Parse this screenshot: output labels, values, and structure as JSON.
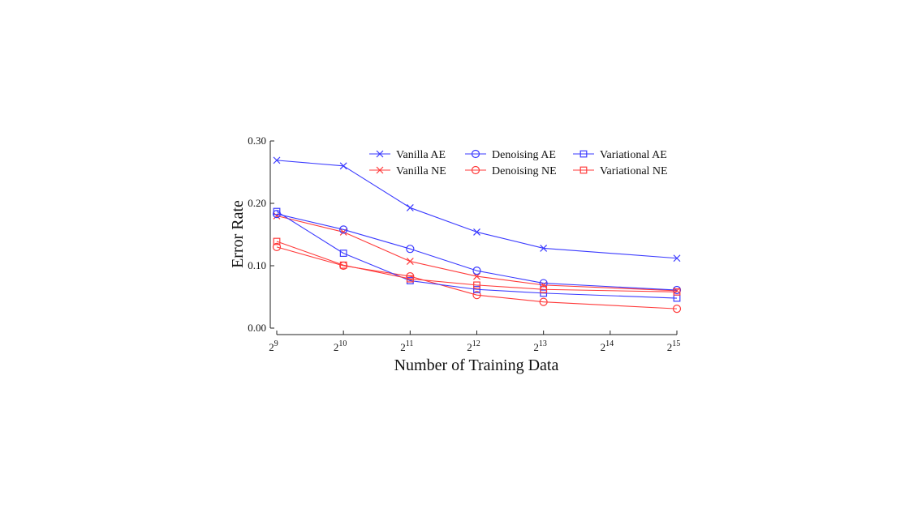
{
  "chart_data": {
    "type": "line",
    "title": "",
    "xlabel": "Number of Training Data",
    "ylabel": "Error Rate",
    "x": [
      9,
      10,
      11,
      12,
      13,
      14,
      15
    ],
    "x_tick_labels": [
      {
        "base": "2",
        "exp": "9"
      },
      {
        "base": "2",
        "exp": "10"
      },
      {
        "base": "2",
        "exp": "11"
      },
      {
        "base": "2",
        "exp": "12"
      },
      {
        "base": "2",
        "exp": "13"
      },
      {
        "base": "2",
        "exp": "14"
      },
      {
        "base": "2",
        "exp": "15"
      }
    ],
    "x_scale": "log2",
    "y_ticks": [
      "0.00",
      "0.10",
      "0.20",
      "0.30"
    ],
    "ylim": [
      0,
      0.3
    ],
    "grid": false,
    "legend_position": "top-right",
    "series": [
      {
        "name": "Vanilla AE",
        "color": "#3a3aff",
        "marker": "x",
        "x": [
          9,
          10,
          11,
          12,
          13,
          15
        ],
        "values": [
          0.269,
          0.26,
          0.193,
          0.154,
          0.128,
          0.112
        ]
      },
      {
        "name": "Vanilla NE",
        "color": "#ff3a3a",
        "marker": "x",
        "x": [
          9,
          10,
          11,
          12,
          13,
          15
        ],
        "values": [
          0.18,
          0.154,
          0.107,
          0.083,
          0.069,
          0.06
        ]
      },
      {
        "name": "Denoising AE",
        "color": "#3a3aff",
        "marker": "circle",
        "x": [
          9,
          10,
          11,
          12,
          13,
          15
        ],
        "values": [
          0.183,
          0.158,
          0.127,
          0.092,
          0.072,
          0.061
        ]
      },
      {
        "name": "Denoising NE",
        "color": "#ff3a3a",
        "marker": "circle",
        "x": [
          9,
          10,
          11,
          12,
          13,
          15
        ],
        "values": [
          0.13,
          0.1,
          0.083,
          0.053,
          0.042,
          0.031
        ]
      },
      {
        "name": "Variational AE",
        "color": "#3a3aff",
        "marker": "square",
        "x": [
          9,
          10,
          11,
          12,
          13,
          15
        ],
        "values": [
          0.187,
          0.12,
          0.076,
          0.062,
          0.056,
          0.048
        ]
      },
      {
        "name": "Variational NE",
        "color": "#ff3a3a",
        "marker": "square",
        "x": [
          9,
          10,
          11,
          12,
          13,
          15
        ],
        "values": [
          0.139,
          0.101,
          0.079,
          0.069,
          0.062,
          0.058
        ]
      }
    ]
  }
}
